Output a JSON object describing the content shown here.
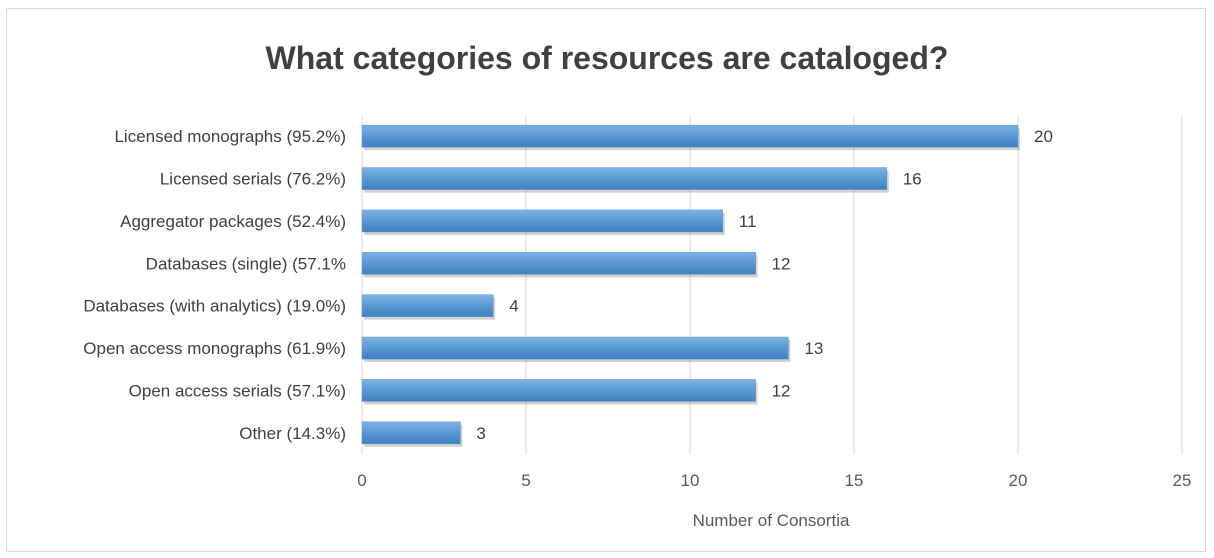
{
  "chart_data": {
    "type": "bar",
    "orientation": "horizontal",
    "title": "What categories of resources are cataloged?",
    "xlabel": "Number of Consortia",
    "ylabel": "",
    "categories": [
      "Licensed monographs (95.2%)",
      "Licensed serials (76.2%)",
      "Aggregator packages (52.4%)",
      "Databases (single) (57.1%",
      "Databases (with analytics) (19.0%)",
      "Open access monographs (61.9%)",
      "Open access serials (57.1%)",
      "Other (14.3%)"
    ],
    "values": [
      20,
      16,
      11,
      12,
      4,
      13,
      12,
      3
    ],
    "xlim": [
      0,
      25
    ],
    "xticks": [
      0,
      5,
      10,
      15,
      20,
      25
    ],
    "grid": "vertical",
    "legend": "none",
    "bar_color": "#5b9bd5"
  }
}
